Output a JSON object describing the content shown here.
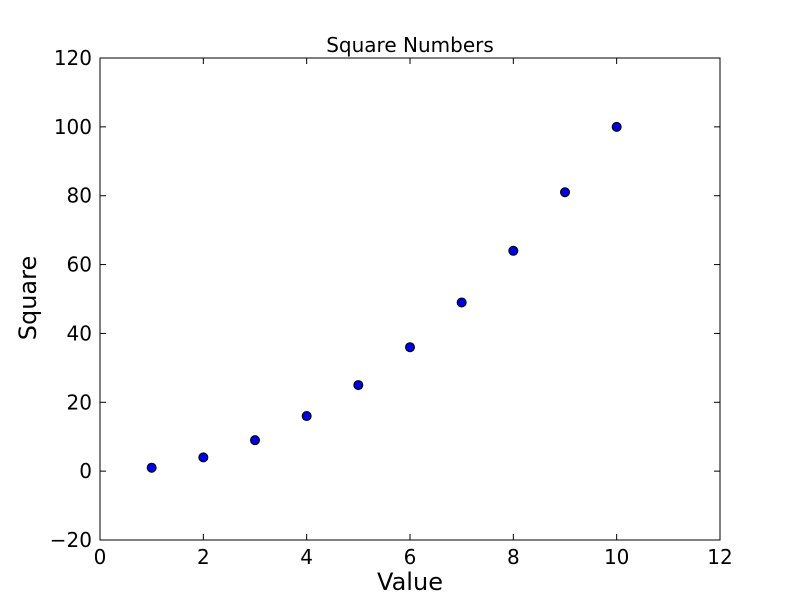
{
  "chart_data": {
    "type": "scatter",
    "title": "Square Numbers",
    "xlabel": "Value",
    "ylabel": "Square",
    "x": [
      1,
      2,
      3,
      4,
      5,
      6,
      7,
      8,
      9,
      10
    ],
    "y": [
      1,
      4,
      9,
      16,
      25,
      36,
      49,
      64,
      81,
      100
    ],
    "xlim": [
      0,
      12
    ],
    "ylim": [
      -20,
      120
    ],
    "xticks": [
      0,
      2,
      4,
      6,
      8,
      10,
      12
    ],
    "yticks": [
      -20,
      0,
      20,
      40,
      60,
      80,
      100,
      120
    ],
    "grid": false,
    "legend": null,
    "marker": {
      "shape": "circle",
      "fill_color": "#0000dd",
      "edge_color": "#000000",
      "radius": 4.5
    },
    "colors": {
      "background": "#ffffff",
      "frame": "#000000",
      "text": "#000000"
    }
  }
}
